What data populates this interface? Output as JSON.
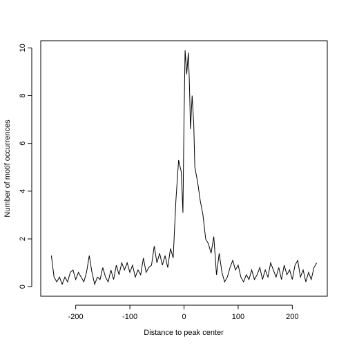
{
  "chart_data": {
    "type": "line",
    "xlabel": "Distance to peak center",
    "ylabel": "Number of motif occurrences",
    "x": [
      -245,
      -240,
      -235,
      -230,
      -225,
      -220,
      -215,
      -210,
      -205,
      -200,
      -195,
      -190,
      -185,
      -180,
      -175,
      -170,
      -165,
      -160,
      -155,
      -150,
      -145,
      -140,
      -135,
      -130,
      -125,
      -120,
      -115,
      -110,
      -105,
      -100,
      -95,
      -90,
      -85,
      -80,
      -75,
      -70,
      -65,
      -60,
      -55,
      -50,
      -45,
      -40,
      -35,
      -30,
      -25,
      -20,
      -15,
      -10,
      -5,
      -2,
      0,
      2,
      5,
      8,
      10,
      12,
      15,
      18,
      20,
      25,
      30,
      35,
      40,
      45,
      50,
      55,
      60,
      65,
      70,
      75,
      80,
      85,
      90,
      95,
      100,
      105,
      110,
      115,
      120,
      125,
      130,
      135,
      140,
      145,
      150,
      155,
      160,
      165,
      170,
      175,
      180,
      185,
      190,
      195,
      200,
      205,
      210,
      215,
      220,
      225,
      230,
      235,
      240,
      245
    ],
    "series": [
      {
        "color": "#000000",
        "values": [
          1.3,
          0.4,
          0.2,
          0.4,
          0.1,
          0.4,
          0.2,
          0.6,
          0.7,
          0.3,
          0.6,
          0.4,
          0.2,
          0.6,
          1.3,
          0.6,
          0.1,
          0.4,
          0.3,
          0.8,
          0.4,
          0.2,
          0.7,
          0.3,
          0.9,
          0.5,
          1.0,
          0.7,
          1.0,
          0.6,
          0.9,
          0.4,
          0.7,
          0.5,
          1.2,
          0.6,
          0.8,
          0.9,
          1.7,
          1.0,
          1.4,
          0.9,
          1.3,
          0.8,
          1.6,
          1.2,
          3.6,
          5.3,
          4.8,
          3.1,
          7.0,
          9.9,
          8.9,
          9.8,
          8.5,
          6.6,
          8.0,
          6.8,
          5.0,
          4.4,
          3.6,
          3.0,
          2.0,
          1.8,
          1.4,
          2.1,
          0.5,
          1.4,
          0.6,
          0.2,
          0.4,
          0.8,
          1.1,
          0.7,
          0.9,
          0.4,
          0.2,
          0.5,
          0.3,
          0.7,
          0.3,
          0.5,
          0.8,
          0.3,
          0.7,
          0.4,
          1.0,
          0.7,
          0.4,
          0.8,
          0.3,
          0.9,
          0.5,
          0.7,
          0.3,
          0.9,
          1.1,
          0.4,
          0.7,
          0.2,
          0.6,
          0.3,
          0.8,
          1.0
        ]
      }
    ],
    "xlim": [
      -264.6,
      264.6
    ],
    "xticks": [
      -200,
      -100,
      0,
      100,
      200
    ],
    "ylim": [
      -0.4,
      10.3
    ],
    "yticks": [
      0,
      2,
      4,
      6,
      8,
      10
    ]
  }
}
